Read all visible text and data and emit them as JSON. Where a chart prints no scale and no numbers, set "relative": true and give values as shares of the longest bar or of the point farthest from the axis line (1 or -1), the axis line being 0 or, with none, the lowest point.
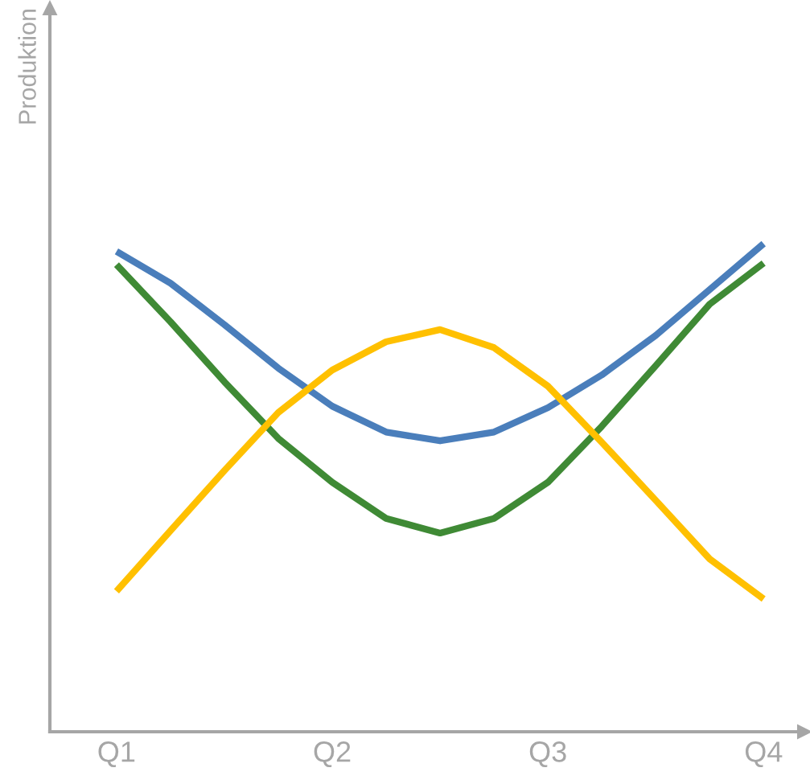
{
  "chart_data": {
    "type": "line",
    "relative": true,
    "ylabel": "Produktion",
    "categories": [
      "Q1",
      null,
      null,
      null,
      "Q2",
      null,
      null,
      null,
      "Q3",
      null,
      null,
      null,
      "Q4"
    ],
    "grid": false,
    "legend": false,
    "marker": "none",
    "line_style": "solid",
    "series": [
      {
        "color": "#4a7ebb",
        "values": [
          0.984,
          0.919,
          0.834,
          0.745,
          0.667,
          0.614,
          0.596,
          0.614,
          0.664,
          0.731,
          0.812,
          0.906,
          1.0
        ]
      },
      {
        "color": "#3f8a35",
        "values": [
          0.957,
          0.84,
          0.717,
          0.601,
          0.511,
          0.437,
          0.407,
          0.437,
          0.511,
          0.626,
          0.75,
          0.876,
          0.96
        ]
      },
      {
        "color": "#ffc000",
        "values": [
          0.288,
          0.412,
          0.535,
          0.654,
          0.741,
          0.799,
          0.824,
          0.787,
          0.708,
          0.593,
          0.474,
          0.354,
          0.272
        ]
      }
    ]
  }
}
